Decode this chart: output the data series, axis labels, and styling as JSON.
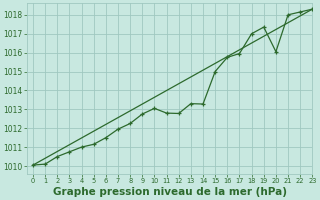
{
  "title": "Graphe pression niveau de la mer (hPa)",
  "background_color": "#c8e8e0",
  "grid_color": "#a0c8c0",
  "line_color": "#2d6a2d",
  "marker_color": "#2d6a2d",
  "xlim": [
    -0.5,
    23
  ],
  "ylim": [
    1009.6,
    1018.6
  ],
  "yticks": [
    1010,
    1011,
    1012,
    1013,
    1014,
    1015,
    1016,
    1017,
    1018
  ],
  "xticks": [
    0,
    1,
    2,
    3,
    4,
    5,
    6,
    7,
    8,
    9,
    10,
    11,
    12,
    13,
    14,
    15,
    16,
    17,
    18,
    19,
    20,
    21,
    22,
    23
  ],
  "line1_x": [
    0,
    1,
    2,
    3,
    4,
    5,
    6,
    7,
    8,
    9,
    10,
    11,
    12,
    13,
    14,
    15,
    16,
    17,
    18,
    19,
    20,
    21,
    22,
    23
  ],
  "line1_y": [
    1010.05,
    1010.1,
    1010.5,
    1010.75,
    1011.0,
    1011.15,
    1011.5,
    1011.95,
    1012.25,
    1012.75,
    1013.05,
    1012.8,
    1012.78,
    1013.3,
    1013.28,
    1015.0,
    1015.75,
    1015.95,
    1017.0,
    1017.35,
    1016.05,
    1018.0,
    1018.15,
    1018.3
  ],
  "line2_x": [
    0,
    23
  ],
  "line2_y": [
    1010.05,
    1018.3
  ],
  "font_color": "#2d6a2d",
  "title_fontsize": 7.5,
  "tick_fontsize": 5.5,
  "xlabel_fontsize": 7.5
}
